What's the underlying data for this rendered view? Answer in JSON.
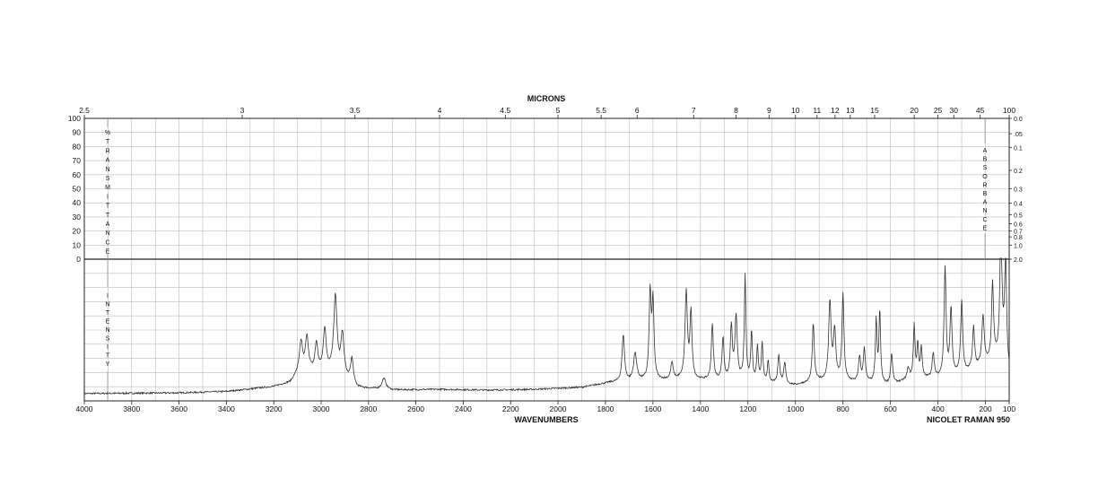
{
  "chart_data": {
    "type": "line",
    "title": "MICRONS",
    "xlabel": "WAVENUMBERS",
    "instrument": "NICOLET RAMAN 950",
    "x_reversed": true,
    "xlim": [
      4000,
      100
    ],
    "grid": true,
    "wavenumber_ticks": [
      "4000",
      "3800",
      "3600",
      "3400",
      "3200",
      "3000",
      "2800",
      "2600",
      "2400",
      "2200",
      "2000",
      "1800",
      "1600",
      "1400",
      "1200",
      "1000",
      "800",
      "600",
      "400",
      "200",
      "100"
    ],
    "micron_ticks": [
      "2.5",
      "3",
      "3.5",
      "4",
      "4.5",
      "5",
      "5.5",
      "6",
      "7",
      "8",
      "9",
      "10",
      "11",
      "12",
      "13",
      "15",
      "20",
      "25",
      "30",
      "45",
      "100"
    ],
    "transmittance_ticks": [
      "100",
      "90",
      "80",
      "70",
      "60",
      "50",
      "40",
      "30",
      "20",
      "10",
      "0"
    ],
    "absorbance_ticks": [
      "0.0",
      ".05",
      "0.1",
      "0.2",
      "0.3",
      "0.4",
      "0.5",
      "0.6",
      "0.7",
      "0.8",
      "1.0",
      "2.0"
    ],
    "left_axis_label_top": "%TRANSMITTANCE",
    "left_axis_label_bottom": "INTENSITY",
    "right_axis_label": "ABSORBANCE",
    "series": [
      {
        "baseline": [
          [
            4000,
            0.04
          ],
          [
            3600,
            0.045
          ],
          [
            3400,
            0.055
          ],
          [
            3200,
            0.09
          ],
          [
            3130,
            0.12
          ],
          [
            3100,
            0.18
          ],
          [
            3000,
            0.2
          ],
          [
            2950,
            0.2
          ],
          [
            2880,
            0.12
          ],
          [
            2850,
            0.08
          ],
          [
            2700,
            0.065
          ],
          [
            2500,
            0.07
          ],
          [
            2300,
            0.065
          ],
          [
            2100,
            0.07
          ],
          [
            1900,
            0.085
          ],
          [
            1780,
            0.12
          ],
          [
            1500,
            0.14
          ],
          [
            1200,
            0.13
          ],
          [
            1000,
            0.1
          ],
          [
            900,
            0.13
          ],
          [
            700,
            0.12
          ],
          [
            600,
            0.1
          ],
          [
            500,
            0.15
          ],
          [
            400,
            0.15
          ],
          [
            300,
            0.18
          ],
          [
            200,
            0.25
          ],
          [
            150,
            0.3
          ],
          [
            120,
            0.4
          ],
          [
            100,
            0.2
          ]
        ],
        "peaks": [
          [
            3085,
            0.22,
            8
          ],
          [
            3060,
            0.25,
            8
          ],
          [
            3020,
            0.2,
            7
          ],
          [
            2985,
            0.3,
            7
          ],
          [
            2940,
            0.55,
            8
          ],
          [
            2910,
            0.3,
            8
          ],
          [
            2870,
            0.18,
            7
          ],
          [
            2735,
            0.08,
            10
          ],
          [
            1725,
            0.34,
            6
          ],
          [
            1675,
            0.2,
            8
          ],
          [
            1612,
            0.62,
            5
          ],
          [
            1600,
            0.55,
            5
          ],
          [
            1520,
            0.12,
            6
          ],
          [
            1460,
            0.63,
            6
          ],
          [
            1440,
            0.48,
            5
          ],
          [
            1350,
            0.4,
            5
          ],
          [
            1305,
            0.3,
            5
          ],
          [
            1270,
            0.38,
            5
          ],
          [
            1250,
            0.45,
            6
          ],
          [
            1212,
            0.75,
            4
          ],
          [
            1185,
            0.35,
            4
          ],
          [
            1160,
            0.25,
            4
          ],
          [
            1140,
            0.28,
            4
          ],
          [
            1115,
            0.15,
            4
          ],
          [
            1070,
            0.2,
            5
          ],
          [
            1045,
            0.15,
            5
          ],
          [
            925,
            0.42,
            5
          ],
          [
            855,
            0.57,
            6
          ],
          [
            835,
            0.35,
            6
          ],
          [
            800,
            0.63,
            5
          ],
          [
            730,
            0.18,
            5
          ],
          [
            710,
            0.24,
            5
          ],
          [
            660,
            0.45,
            4
          ],
          [
            645,
            0.52,
            4
          ],
          [
            595,
            0.22,
            5
          ],
          [
            525,
            0.08,
            6
          ],
          [
            500,
            0.38,
            4
          ],
          [
            485,
            0.24,
            4
          ],
          [
            470,
            0.22,
            4
          ],
          [
            420,
            0.18,
            5
          ],
          [
            370,
            0.78,
            5
          ],
          [
            345,
            0.48,
            5
          ],
          [
            300,
            0.53,
            5
          ],
          [
            250,
            0.3,
            5
          ],
          [
            210,
            0.35,
            6
          ],
          [
            170,
            0.55,
            5
          ],
          [
            135,
            0.88,
            5
          ],
          [
            115,
            0.7,
            4
          ]
        ]
      }
    ]
  }
}
